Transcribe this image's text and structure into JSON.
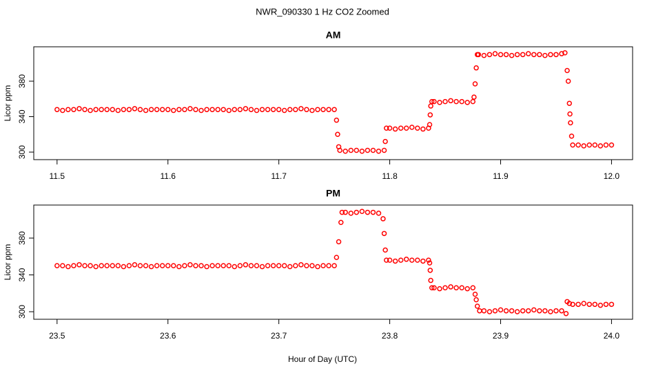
{
  "title": "NWR_090330  1 Hz CO2 Zoomed",
  "xlabel": "Hour of Day (UTC)",
  "chart_data": [
    {
      "type": "scatter",
      "title": "AM",
      "ylabel": "Licor ppm",
      "color": "#ff0000",
      "xlim": [
        11.479,
        12.019
      ],
      "ylim": [
        291.5,
        418.8
      ],
      "xticks": [
        11.5,
        11.6,
        11.7,
        11.8,
        11.9,
        {
          "value": 12,
          "label": "12.0"
        }
      ],
      "yticks": [
        300,
        340,
        380
      ],
      "x": [
        11.5,
        11.505,
        11.51,
        11.515,
        11.52,
        11.525,
        11.53,
        11.535,
        11.54,
        11.545,
        11.55,
        11.555,
        11.56,
        11.565,
        11.57,
        11.575,
        11.58,
        11.585,
        11.59,
        11.595,
        11.6,
        11.605,
        11.61,
        11.615,
        11.62,
        11.625,
        11.63,
        11.635,
        11.64,
        11.645,
        11.65,
        11.655,
        11.66,
        11.665,
        11.67,
        11.675,
        11.68,
        11.685,
        11.69,
        11.695,
        11.7,
        11.705,
        11.71,
        11.715,
        11.72,
        11.725,
        11.73,
        11.735,
        11.74,
        11.745,
        11.75,
        11.752,
        11.753,
        11.754,
        11.755,
        11.76,
        11.765,
        11.77,
        11.775,
        11.78,
        11.785,
        11.79,
        11.795,
        11.796,
        11.797,
        11.8,
        11.805,
        11.81,
        11.815,
        11.82,
        11.825,
        11.83,
        11.835,
        11.836,
        11.8365,
        11.837,
        11.838,
        11.84,
        11.845,
        11.85,
        11.855,
        11.86,
        11.865,
        11.87,
        11.875,
        11.876,
        11.877,
        11.878,
        11.879,
        11.88,
        11.885,
        11.89,
        11.895,
        11.9,
        11.905,
        11.91,
        11.915,
        11.92,
        11.925,
        11.93,
        11.935,
        11.94,
        11.945,
        11.95,
        11.955,
        11.958,
        11.96,
        11.961,
        11.962,
        11.9625,
        11.963,
        11.964,
        11.965,
        11.97,
        11.975,
        11.98,
        11.985,
        11.99,
        11.995,
        12
      ],
      "values": [
        348,
        347,
        348,
        348,
        349,
        348,
        347,
        348,
        348,
        348,
        348,
        347,
        348,
        348,
        349,
        348,
        347,
        348,
        348,
        348,
        348,
        347,
        348,
        348,
        349,
        348,
        347,
        348,
        348,
        348,
        348,
        347,
        348,
        348,
        349,
        348,
        347,
        348,
        348,
        348,
        348,
        347,
        348,
        348,
        349,
        348,
        347,
        348,
        348,
        348,
        348,
        336,
        320,
        306,
        302,
        301,
        302,
        302,
        301,
        302,
        302,
        301,
        302,
        312,
        327,
        327,
        326,
        327,
        327,
        328,
        327,
        326,
        327,
        331,
        342,
        352,
        357,
        357,
        356,
        357,
        358,
        357,
        357,
        356,
        357,
        362,
        377,
        395,
        410,
        410,
        409,
        410,
        411,
        410,
        410,
        409,
        410,
        410,
        411,
        410,
        410,
        409,
        410,
        410,
        411,
        412,
        392,
        380,
        355,
        343,
        333,
        318,
        308,
        308,
        307,
        308,
        308,
        307,
        308,
        308
      ]
    },
    {
      "type": "scatter",
      "title": "PM",
      "ylabel": "Licor ppm",
      "color": "#ff0000",
      "xlim": [
        23.479,
        24.019
      ],
      "ylim": [
        291.8,
        415.9
      ],
      "xticks": [
        23.5,
        23.6,
        23.7,
        23.8,
        23.9,
        {
          "value": 24,
          "label": "24.0"
        }
      ],
      "yticks": [
        300,
        340,
        380
      ],
      "x": [
        23.5,
        23.505,
        23.51,
        23.515,
        23.52,
        23.525,
        23.53,
        23.535,
        23.54,
        23.545,
        23.55,
        23.555,
        23.56,
        23.565,
        23.57,
        23.575,
        23.58,
        23.585,
        23.59,
        23.595,
        23.6,
        23.605,
        23.61,
        23.615,
        23.62,
        23.625,
        23.63,
        23.635,
        23.64,
        23.645,
        23.65,
        23.655,
        23.66,
        23.665,
        23.67,
        23.675,
        23.68,
        23.685,
        23.69,
        23.695,
        23.7,
        23.705,
        23.71,
        23.715,
        23.72,
        23.725,
        23.73,
        23.735,
        23.74,
        23.745,
        23.75,
        23.752,
        23.754,
        23.756,
        23.757,
        23.76,
        23.765,
        23.77,
        23.775,
        23.78,
        23.785,
        23.79,
        23.794,
        23.795,
        23.796,
        23.797,
        23.8,
        23.805,
        23.81,
        23.815,
        23.82,
        23.825,
        23.83,
        23.835,
        23.836,
        23.8365,
        23.837,
        23.838,
        23.84,
        23.845,
        23.85,
        23.855,
        23.86,
        23.865,
        23.87,
        23.875,
        23.877,
        23.878,
        23.879,
        23.881,
        23.885,
        23.89,
        23.895,
        23.9,
        23.905,
        23.91,
        23.915,
        23.92,
        23.925,
        23.93,
        23.935,
        23.94,
        23.945,
        23.95,
        23.955,
        23.959,
        23.96,
        23.962,
        23.965,
        23.97,
        23.975,
        23.98,
        23.985,
        23.99,
        23.995,
        24
      ],
      "values": [
        350,
        350,
        349,
        350,
        351,
        350,
        350,
        349,
        350,
        350,
        350,
        350,
        349,
        350,
        351,
        350,
        350,
        349,
        350,
        350,
        350,
        350,
        349,
        350,
        351,
        350,
        350,
        349,
        350,
        350,
        350,
        350,
        349,
        350,
        351,
        350,
        350,
        349,
        350,
        350,
        350,
        350,
        349,
        350,
        351,
        350,
        350,
        349,
        350,
        350,
        350,
        359,
        376,
        397,
        408,
        408,
        407,
        408,
        409,
        408,
        408,
        407,
        401,
        385,
        367,
        356,
        356,
        355,
        356,
        357,
        356,
        356,
        355,
        356,
        353,
        345,
        334,
        326,
        326,
        325,
        326,
        327,
        326,
        326,
        325,
        326,
        319,
        313,
        306,
        301,
        301,
        300,
        301,
        302,
        301,
        301,
        300,
        301,
        301,
        302,
        301,
        301,
        300,
        301,
        301,
        298,
        311,
        309,
        308,
        308,
        309,
        308,
        308,
        307,
        308,
        308
      ]
    }
  ]
}
